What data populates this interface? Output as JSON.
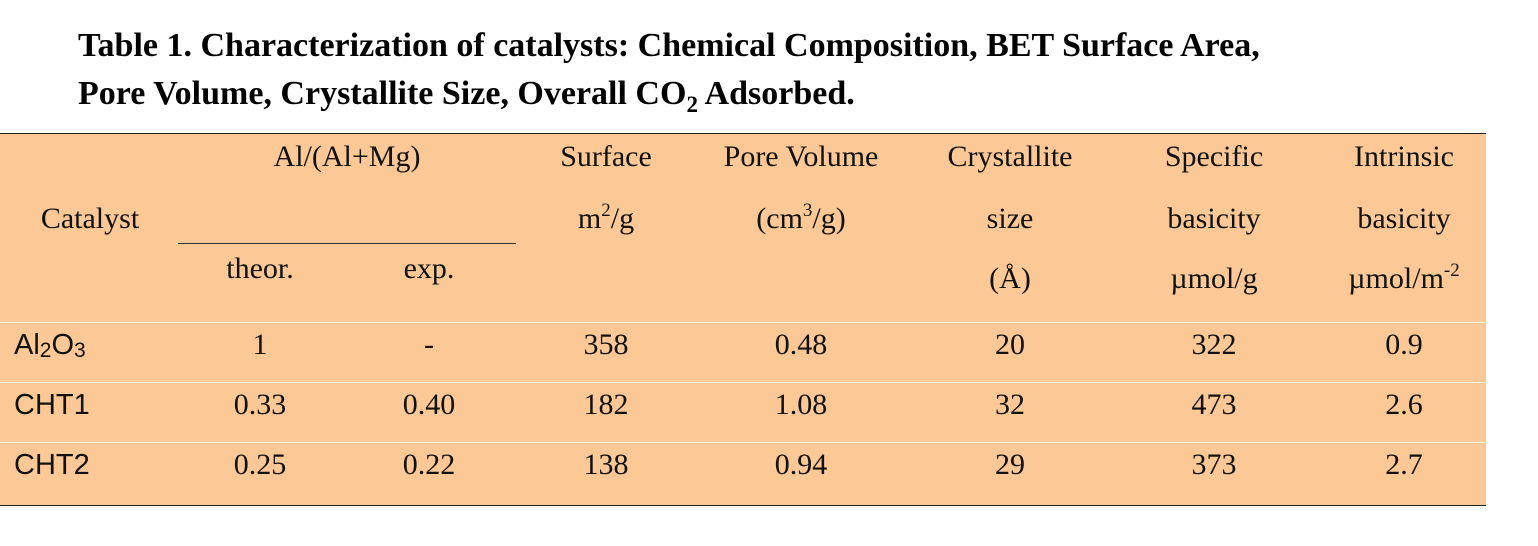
{
  "caption": {
    "line1": "Table 1. Characterization of catalysts: Chemical Composition, BET Surface Area,",
    "line2_pre": "Pore Volume, Crystallite Size, Overall CO",
    "line2_sub": "2",
    "line2_post": " Adsorbed."
  },
  "header": {
    "catalyst": "Catalyst",
    "ratio_group": "Al/(Al+Mg)",
    "theor": "theor.",
    "exp": "exp.",
    "surface": "Surface",
    "surface_unit_pre": "m",
    "surface_unit_sup": "2",
    "surface_unit_post": "/g",
    "pore_volume": "Pore Volume",
    "pore_unit_pre": "(cm",
    "pore_unit_sup": "3",
    "pore_unit_post": "/g)",
    "crystallite_1": "Crystallite",
    "crystallite_2": "size",
    "crystallite_3": "(Å)",
    "specific_1": "Specific",
    "specific_2": "basicity",
    "specific_3": "µmol/g",
    "intrinsic_1": "Intrinsic",
    "intrinsic_2": "basicity",
    "intrinsic_3_pre": "µmol/m",
    "intrinsic_3_sup": "-2"
  },
  "rows": [
    {
      "catalyst_main": "Al",
      "catalyst_sub1": "2",
      "catalyst_mid": "O",
      "catalyst_sub2": "3",
      "theor": "1",
      "exp": "-",
      "surface": "358",
      "pore_volume": "0.48",
      "crystallite": "20",
      "specific": "322",
      "intrinsic": "0.9"
    },
    {
      "catalyst": "CHT1",
      "theor": "0.33",
      "exp": "0.40",
      "surface": "182",
      "pore_volume": "1.08",
      "crystallite": "32",
      "specific": "473",
      "intrinsic": "2.6"
    },
    {
      "catalyst": "CHT2",
      "theor": "0.25",
      "exp": "0.22",
      "surface": "138",
      "pore_volume": "0.94",
      "crystallite": "29",
      "specific": "373",
      "intrinsic": "2.7"
    }
  ],
  "colors": {
    "table_background": "#fcc895",
    "row_separator": "#f6f0ea",
    "rule": "#222222"
  }
}
